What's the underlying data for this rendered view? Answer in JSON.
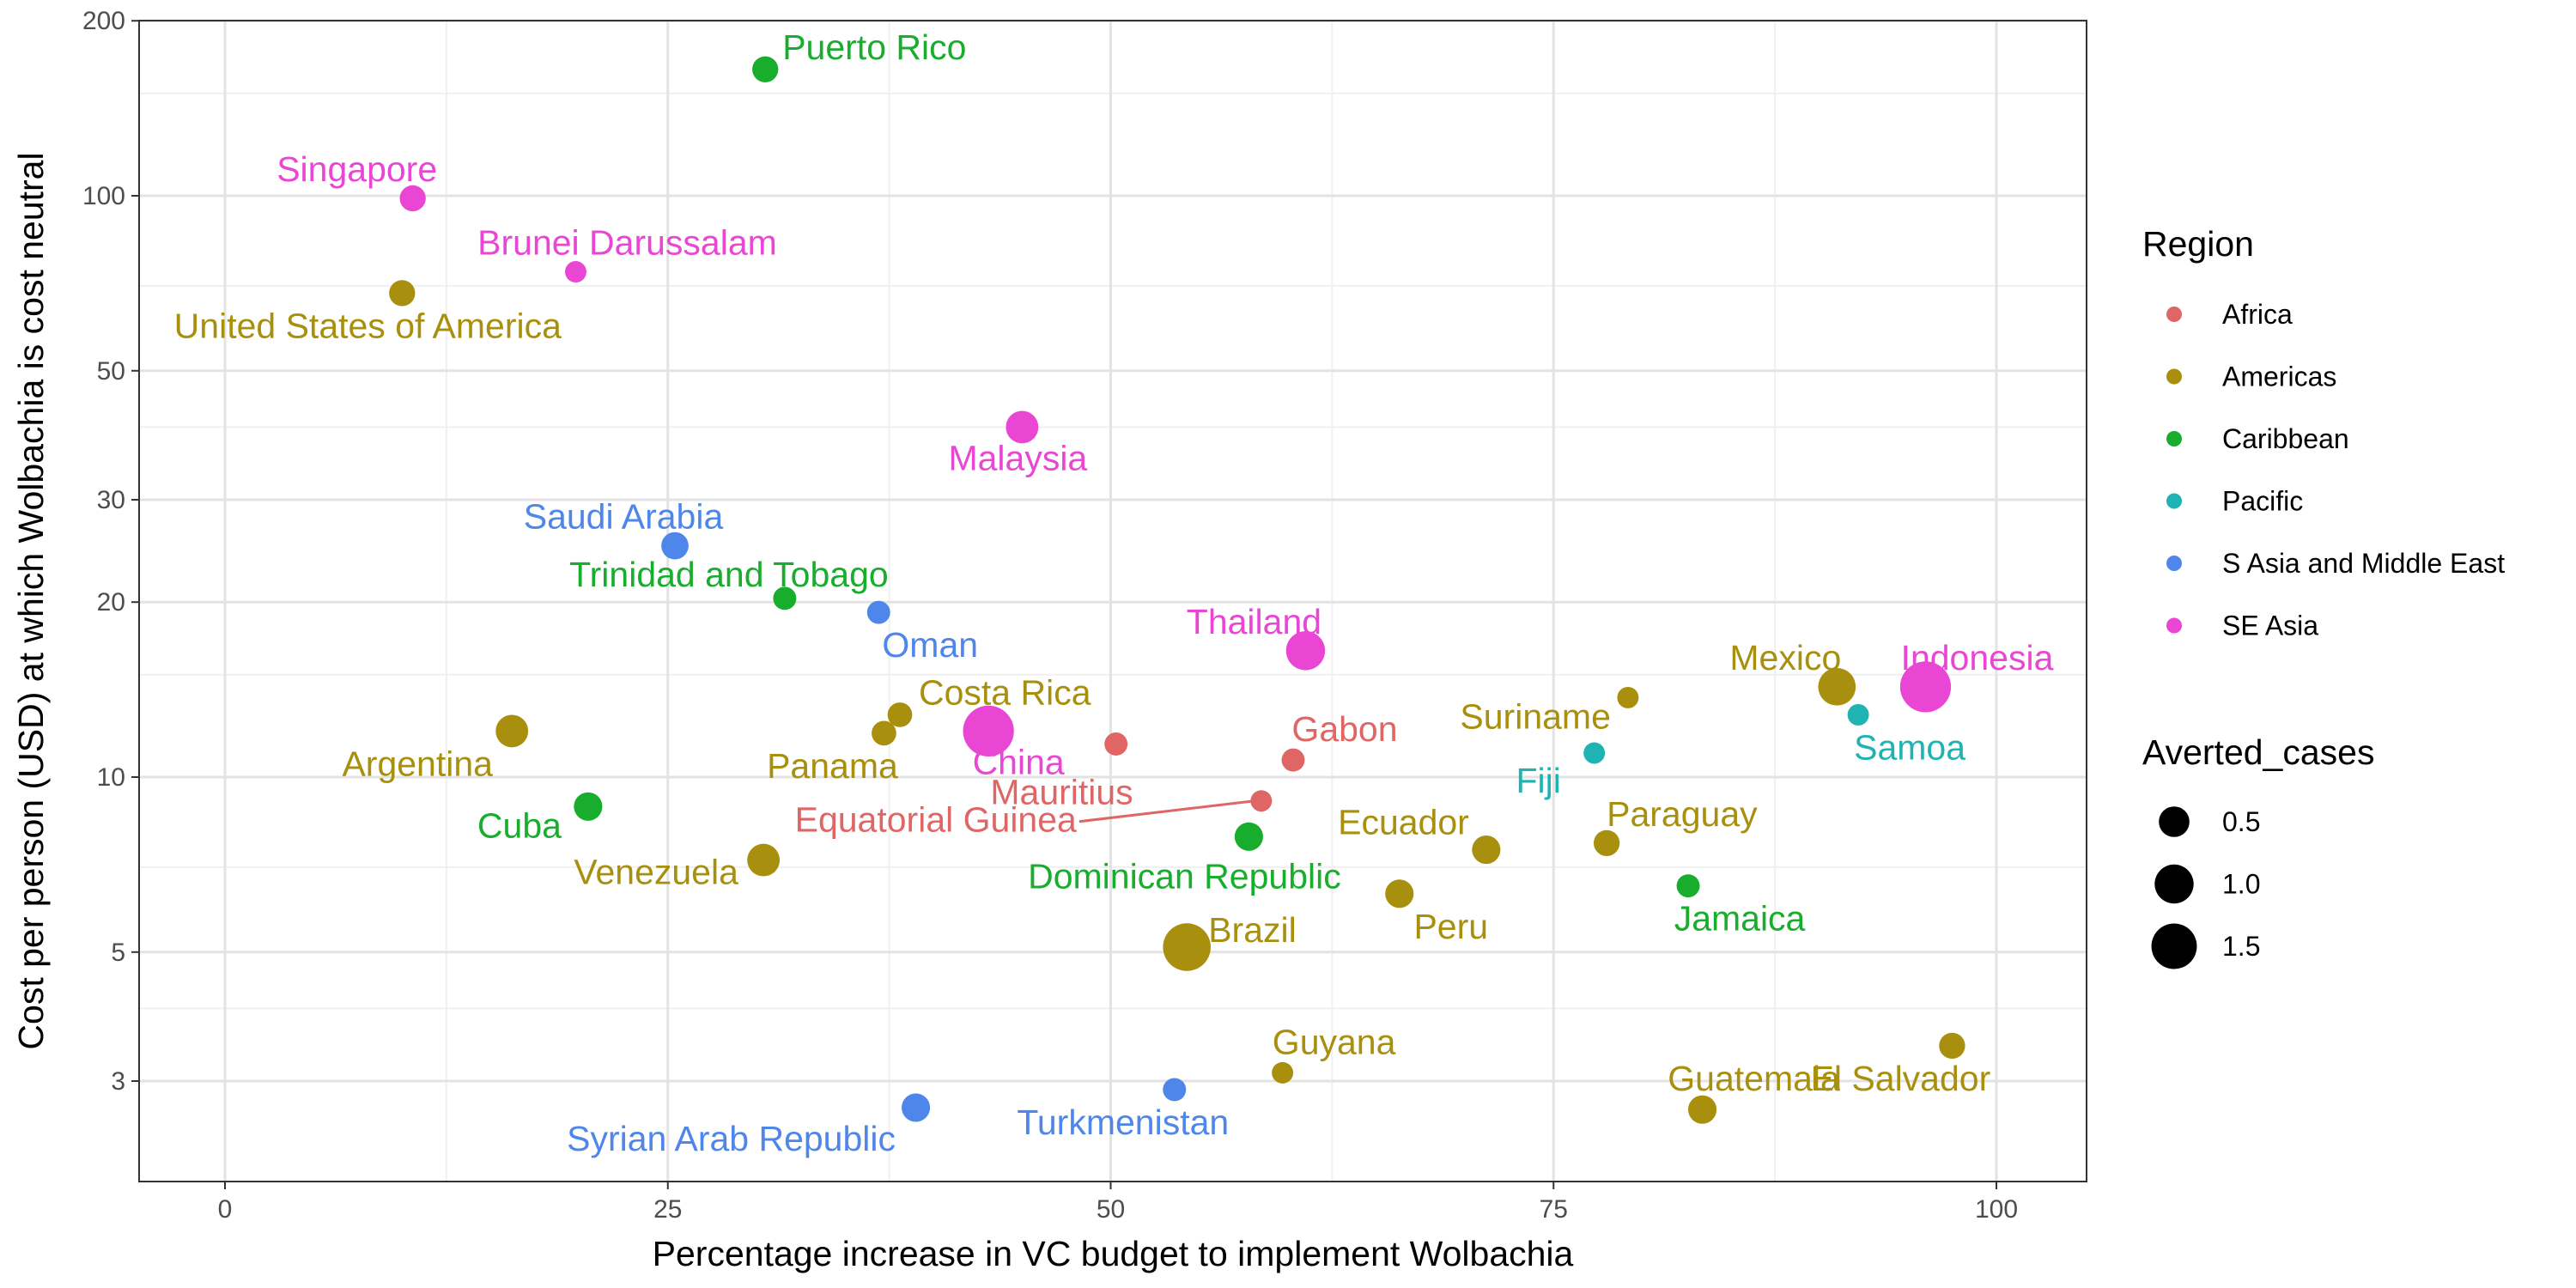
{
  "chart_data": {
    "type": "scatter",
    "xlabel": "Percentage increase in VC budget to implement Wolbachia",
    "ylabel": "Cost per person (USD) at which Wolbachia is cost neutral",
    "xlim": [
      -5,
      105
    ],
    "ylim": [
      2.2,
      200
    ],
    "y_scale": "log",
    "x_ticks": [
      0,
      25,
      50,
      75,
      100
    ],
    "y_ticks": [
      3,
      5,
      10,
      20,
      30,
      50,
      100,
      200
    ],
    "grid": true,
    "legend_placement": "right",
    "colors": {
      "Africa": "#e06666",
      "Americas": "#a8900e",
      "Caribbean": "#19ad2d",
      "Pacific": "#1fb3b3",
      "S Asia and Middle East": "#4f86ea",
      "SE Asia": "#e946d4"
    },
    "legend": {
      "color_title": "Region",
      "regions": [
        "Africa",
        "Americas",
        "Caribbean",
        "Pacific",
        "S Asia and Middle East",
        "SE Asia"
      ],
      "size_title": "Averted_cases",
      "sizes": [
        {
          "label": "0.5",
          "value": 0.5
        },
        {
          "label": "1.0",
          "value": 1.0
        },
        {
          "label": "1.5",
          "value": 1.5
        }
      ]
    },
    "points": [
      {
        "label": "Puerto Rico",
        "x": 30.5,
        "y": 165,
        "region": "Caribbean",
        "averted_cases": 0.3
      },
      {
        "label": "Singapore",
        "x": 10.6,
        "y": 99,
        "region": "SE Asia",
        "averted_cases": 0.3
      },
      {
        "label": "Brunei Darussalam",
        "x": 19.8,
        "y": 74,
        "region": "SE Asia",
        "averted_cases": 0.15
      },
      {
        "label": "United States of America",
        "x": 10.0,
        "y": 68,
        "region": "Americas",
        "averted_cases": 0.3
      },
      {
        "label": "Malaysia",
        "x": 45.0,
        "y": 40,
        "region": "SE Asia",
        "averted_cases": 0.6
      },
      {
        "label": "Saudi Arabia",
        "x": 25.4,
        "y": 25,
        "region": "S Asia and Middle East",
        "averted_cases": 0.35
      },
      {
        "label": "Trinidad and Tobago",
        "x": 31.6,
        "y": 20.3,
        "region": "Caribbean",
        "averted_cases": 0.2
      },
      {
        "label": "Oman",
        "x": 36.9,
        "y": 19.2,
        "region": "S Asia and Middle East",
        "averted_cases": 0.2
      },
      {
        "label": "Thailand",
        "x": 61.0,
        "y": 16.5,
        "region": "SE Asia",
        "averted_cases": 1.0
      },
      {
        "label": "Mexico",
        "x": 91.0,
        "y": 14.3,
        "region": "Americas",
        "averted_cases": 0.9
      },
      {
        "label": "Indonesia",
        "x": 96.0,
        "y": 14.3,
        "region": "SE Asia",
        "averted_cases": 2.0
      },
      {
        "label": "Suriname",
        "x": 79.2,
        "y": 13.7,
        "region": "Americas",
        "averted_cases": 0.15
      },
      {
        "label": "Samoa",
        "x": 92.2,
        "y": 12.8,
        "region": "Pacific",
        "averted_cases": 0.15
      },
      {
        "label": "Costa Rica",
        "x": 38.1,
        "y": 12.8,
        "region": "Americas",
        "averted_cases": 0.25
      },
      {
        "label": "China",
        "x": 43.1,
        "y": 12.0,
        "region": "SE Asia",
        "averted_cases": 2.0
      },
      {
        "label": "Panama",
        "x": 37.2,
        "y": 11.9,
        "region": "Americas",
        "averted_cases": 0.25
      },
      {
        "label": "Argentina",
        "x": 16.2,
        "y": 12.0,
        "region": "Americas",
        "averted_cases": 0.6
      },
      {
        "label": "Mauritius",
        "x": 50.3,
        "y": 11.4,
        "region": "Africa",
        "averted_cases": 0.2
      },
      {
        "label": "Fiji",
        "x": 77.3,
        "y": 11.0,
        "region": "Pacific",
        "averted_cases": 0.15
      },
      {
        "label": "Gabon",
        "x": 60.3,
        "y": 10.7,
        "region": "Africa",
        "averted_cases": 0.2
      },
      {
        "label": "Equatorial Guinea",
        "x": 58.5,
        "y": 9.1,
        "region": "Africa",
        "averted_cases": 0.15
      },
      {
        "label": "Cuba",
        "x": 20.5,
        "y": 8.9,
        "region": "Caribbean",
        "averted_cases": 0.4
      },
      {
        "label": "Dominican Republic",
        "x": 57.8,
        "y": 7.9,
        "region": "Caribbean",
        "averted_cases": 0.4
      },
      {
        "label": "Paraguay",
        "x": 78.0,
        "y": 7.7,
        "region": "Americas",
        "averted_cases": 0.3
      },
      {
        "label": "Ecuador",
        "x": 71.2,
        "y": 7.5,
        "region": "Americas",
        "averted_cases": 0.4
      },
      {
        "label": "Venezuela",
        "x": 30.4,
        "y": 7.2,
        "region": "Americas",
        "averted_cases": 0.6
      },
      {
        "label": "Jamaica",
        "x": 82.6,
        "y": 6.5,
        "region": "Caribbean",
        "averted_cases": 0.2
      },
      {
        "label": "Peru",
        "x": 66.3,
        "y": 6.3,
        "region": "Americas",
        "averted_cases": 0.4
      },
      {
        "label": "Brazil",
        "x": 54.3,
        "y": 5.1,
        "region": "Americas",
        "averted_cases": 1.7
      },
      {
        "label": "Guyana",
        "x": 59.7,
        "y": 3.1,
        "region": "Americas",
        "averted_cases": 0.15
      },
      {
        "label": "El Salvador",
        "x": 97.5,
        "y": 3.45,
        "region": "Americas",
        "averted_cases": 0.3
      },
      {
        "label": "Turkmenistan",
        "x": 53.6,
        "y": 2.9,
        "region": "S Asia and Middle East",
        "averted_cases": 0.2
      },
      {
        "label": "Guatemala",
        "x": 83.4,
        "y": 2.68,
        "region": "Americas",
        "averted_cases": 0.4
      },
      {
        "label": "Syrian Arab Republic",
        "x": 39.0,
        "y": 2.7,
        "region": "S Asia and Middle East",
        "averted_cases": 0.4
      }
    ]
  }
}
